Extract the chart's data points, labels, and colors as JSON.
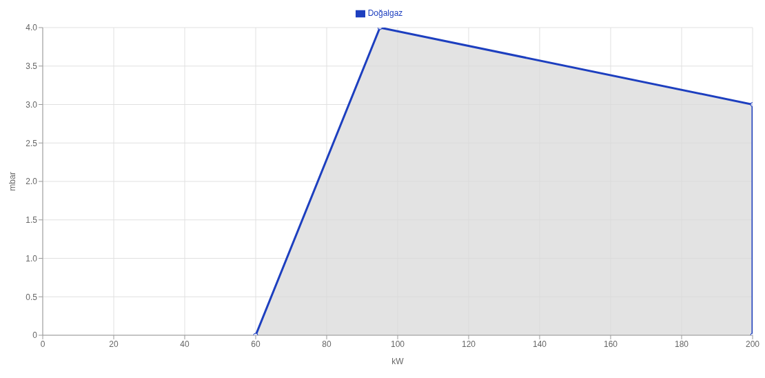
{
  "chart_data": {
    "type": "area",
    "xlabel": "kW",
    "ylabel": "mbar",
    "series": [
      {
        "name": "Doğalgaz",
        "color": "#1d3fbf",
        "x": [
          60,
          95,
          200,
          200
        ],
        "values": [
          0,
          4,
          3,
          0
        ]
      }
    ],
    "xlim": [
      0,
      200
    ],
    "xticks": [
      0,
      20,
      40,
      60,
      80,
      100,
      120,
      140,
      160,
      180,
      200
    ],
    "ylim": [
      0,
      4
    ],
    "yticks": [
      0,
      0.5,
      {
        "value": 1,
        "label": "1.0"
      },
      1.5,
      {
        "value": 2,
        "label": "2.0"
      },
      2.5,
      {
        "value": 3,
        "label": "3.0"
      },
      3.5,
      {
        "value": 4,
        "label": "4.0"
      }
    ],
    "grid": true,
    "legend": "top",
    "marker": "circle"
  }
}
